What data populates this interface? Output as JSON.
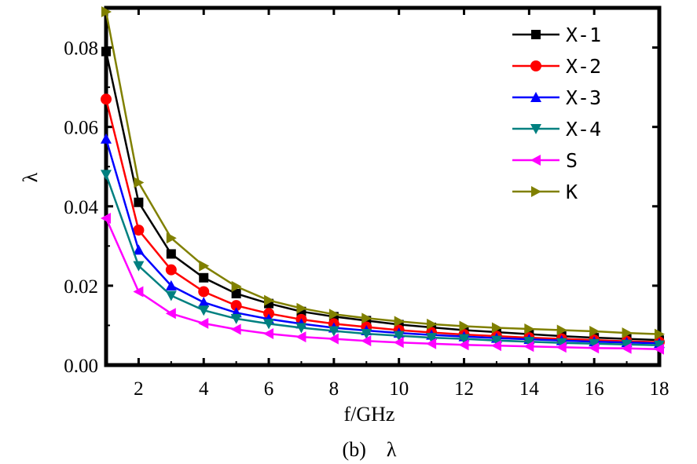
{
  "chart_data": {
    "type": "line",
    "xlabel": "f/GHz",
    "ylabel": "λ",
    "caption": "(b)    λ",
    "xlim": [
      1,
      18
    ],
    "ylim": [
      0,
      0.09
    ],
    "x_ticks": [
      2,
      4,
      6,
      8,
      10,
      12,
      14,
      16,
      18
    ],
    "y_ticks": [
      0.0,
      0.02,
      0.04,
      0.06,
      0.08
    ],
    "y_tick_labels": [
      "0.00",
      "0.02",
      "0.04",
      "0.06",
      "0.08"
    ],
    "x": [
      1,
      2,
      3,
      4,
      5,
      6,
      7,
      8,
      9,
      10,
      11,
      12,
      13,
      14,
      15,
      16,
      17,
      18
    ],
    "legend_position": "top-right",
    "series": [
      {
        "name": "X-1",
        "color": "#000000",
        "marker": "square",
        "values": [
          0.079,
          0.041,
          0.028,
          0.022,
          0.018,
          0.0155,
          0.0135,
          0.0122,
          0.0112,
          0.0102,
          0.0095,
          0.0088,
          0.0083,
          0.0078,
          0.0073,
          0.0069,
          0.0066,
          0.0063
        ]
      },
      {
        "name": "X-2",
        "color": "#ff0000",
        "marker": "circle",
        "values": [
          0.067,
          0.034,
          0.024,
          0.0185,
          0.015,
          0.013,
          0.0115,
          0.0104,
          0.0096,
          0.0088,
          0.0082,
          0.0077,
          0.0073,
          0.0069,
          0.0066,
          0.0063,
          0.006,
          0.0058
        ]
      },
      {
        "name": "X-3",
        "color": "#0000ff",
        "marker": "triangle-up",
        "values": [
          0.057,
          0.029,
          0.02,
          0.0158,
          0.0132,
          0.0116,
          0.0104,
          0.0094,
          0.0087,
          0.0081,
          0.0076,
          0.0072,
          0.0068,
          0.0065,
          0.0062,
          0.0059,
          0.0057,
          0.0055
        ]
      },
      {
        "name": "X-4",
        "color": "#008080",
        "marker": "triangle-down",
        "values": [
          0.048,
          0.025,
          0.0175,
          0.0138,
          0.0117,
          0.0104,
          0.0094,
          0.0086,
          0.0079,
          0.0074,
          0.0069,
          0.0066,
          0.0062,
          0.0059,
          0.0056,
          0.0054,
          0.0052,
          0.005
        ]
      },
      {
        "name": "S",
        "color": "#ff00ff",
        "marker": "triangle-left",
        "values": [
          0.037,
          0.0185,
          0.013,
          0.0105,
          0.009,
          0.0079,
          0.0071,
          0.0066,
          0.0061,
          0.0057,
          0.0054,
          0.0051,
          0.0049,
          0.0047,
          0.0045,
          0.0043,
          0.0042,
          0.004
        ]
      },
      {
        "name": "K",
        "color": "#808000",
        "marker": "triangle-right",
        "values": [
          0.089,
          0.046,
          0.032,
          0.025,
          0.0198,
          0.0163,
          0.0143,
          0.0128,
          0.0118,
          0.011,
          0.0103,
          0.0098,
          0.0094,
          0.0091,
          0.0088,
          0.0085,
          0.0081,
          0.0078
        ]
      }
    ]
  }
}
